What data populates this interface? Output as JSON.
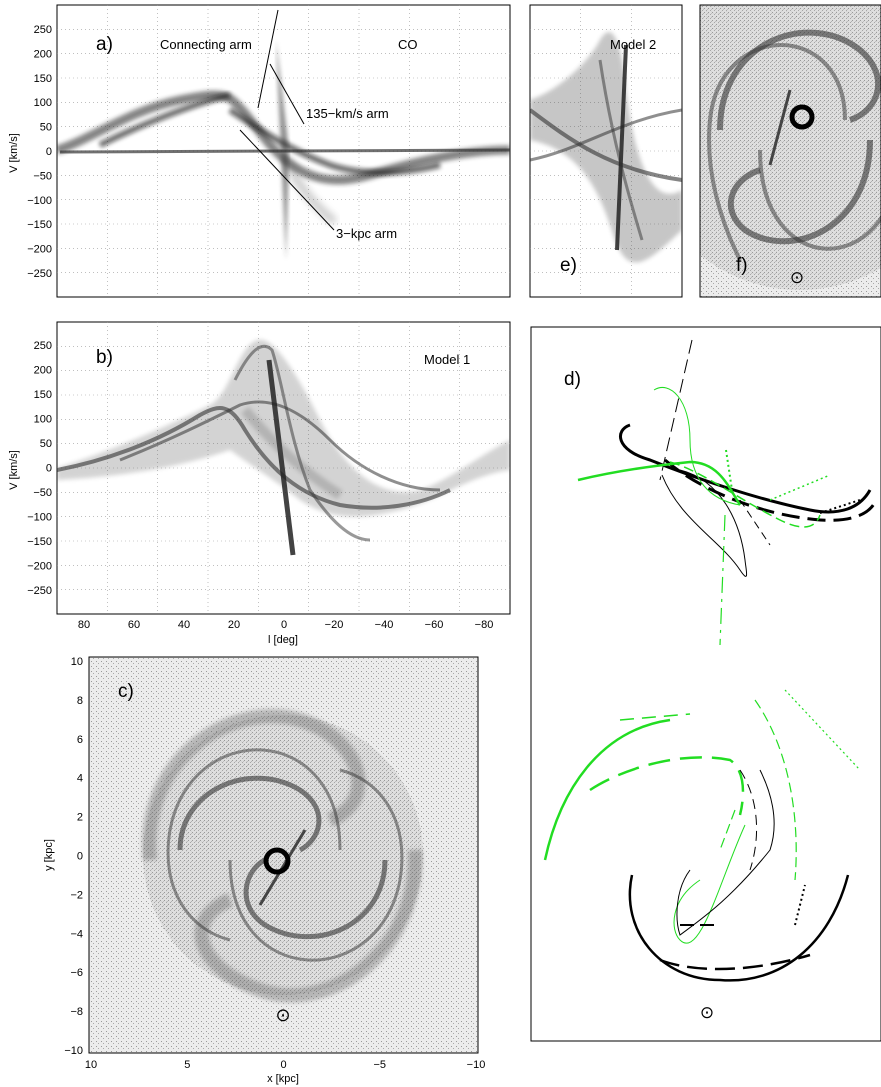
{
  "panels": {
    "a": {
      "label": "a)",
      "dataset": "CO",
      "ylabel": "V  [km/s]",
      "annotations": [
        "Connecting arm",
        "135−km/s arm",
        "3−kpc arm"
      ],
      "yticks": [
        "250",
        "200",
        "150",
        "100",
        "50",
        "0",
        "−50",
        "−100",
        "−150",
        "−200",
        "−250"
      ]
    },
    "b": {
      "label": "b)",
      "dataset": "Model 1",
      "ylabel": "V  [km/s]",
      "xlabel": "l [deg]",
      "yticks": [
        "250",
        "200",
        "150",
        "100",
        "50",
        "0",
        "−50",
        "−100",
        "−150",
        "−200",
        "−250"
      ],
      "xticks": [
        "80",
        "60",
        "40",
        "20",
        "0",
        "−20",
        "−40",
        "−60",
        "−80"
      ]
    },
    "c": {
      "label": "c)",
      "xlabel": "x [kpc]",
      "ylabel": "y [kpc]",
      "xticks": [
        "10",
        "5",
        "0",
        "−5",
        "−10"
      ],
      "yticks": [
        "10",
        "8",
        "6",
        "4",
        "2",
        "0",
        "−2",
        "−4",
        "−6",
        "−8",
        "−10"
      ]
    },
    "d": {
      "label": "d)"
    },
    "e": {
      "label": "e)",
      "dataset": "Model 2"
    },
    "f": {
      "label": "f)"
    }
  },
  "sun_symbol": "⊙",
  "colors": {
    "line_black": "#000000",
    "line_green": "#22dd22",
    "density": "#555555"
  }
}
